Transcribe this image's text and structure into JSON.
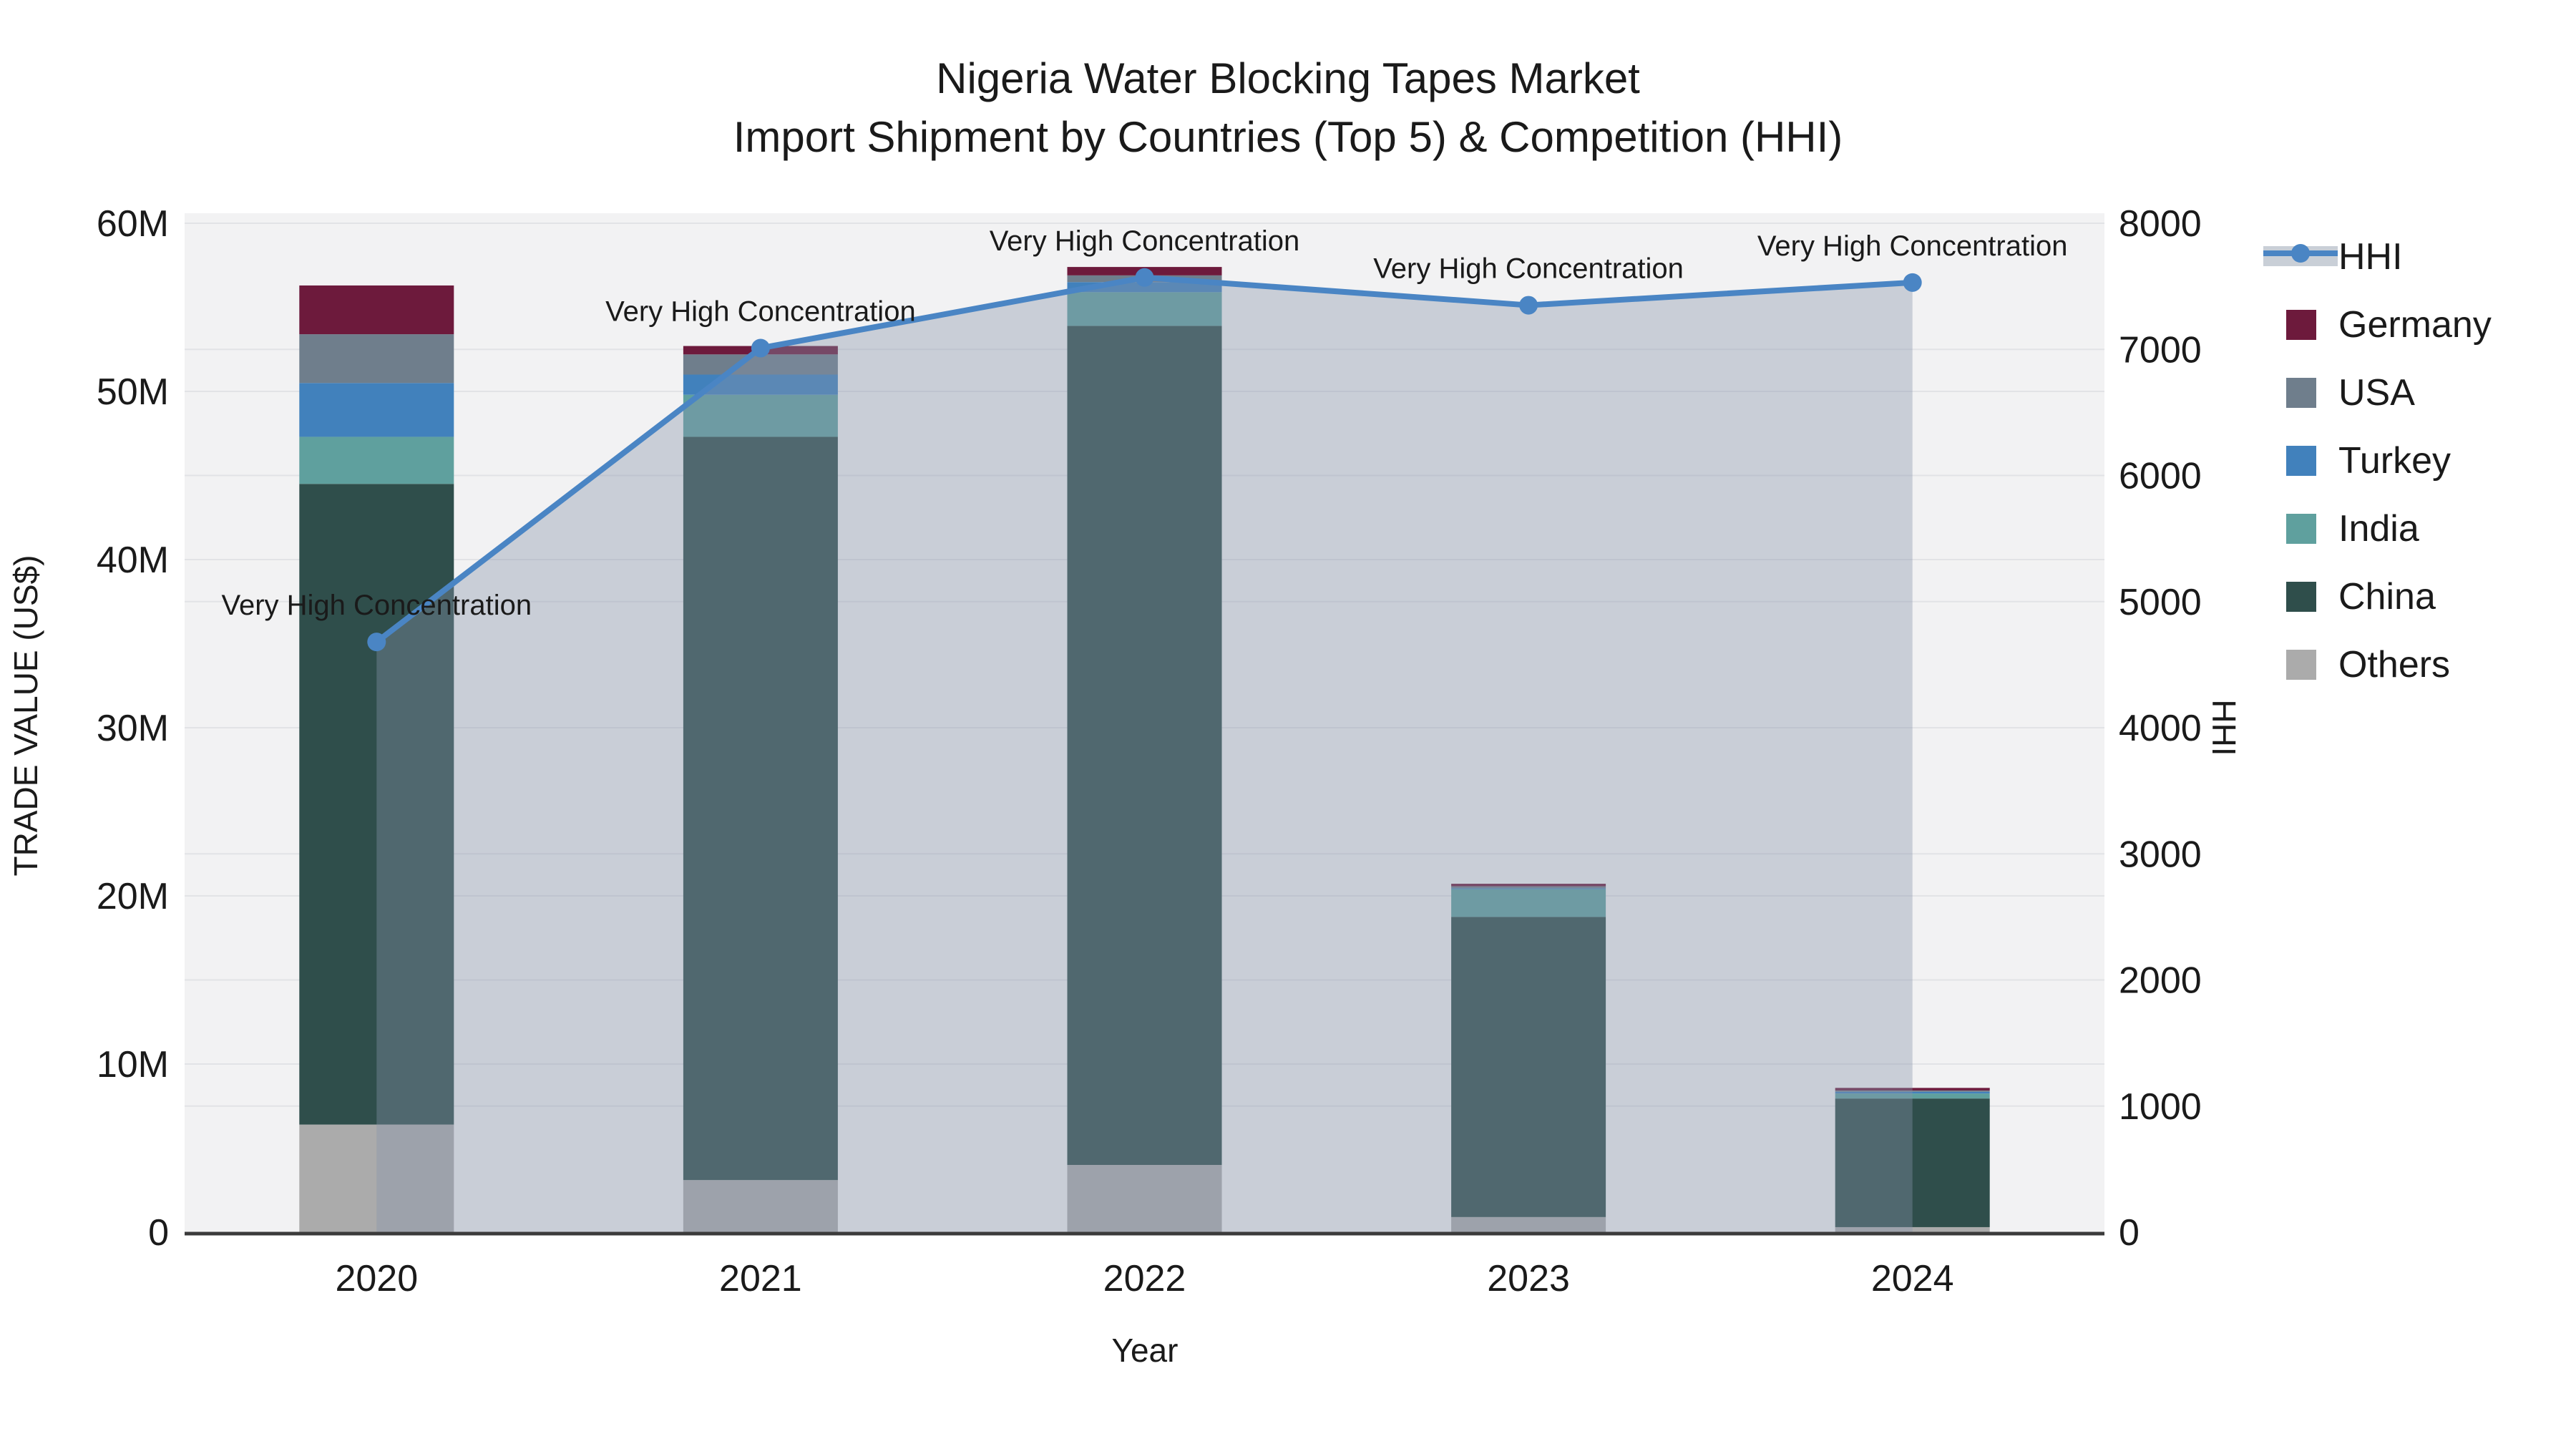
{
  "title": {
    "line1": "Nigeria Water Blocking Tapes Market",
    "line2": "Import Shipment by Countries (Top 5) & Competition (HHI)"
  },
  "colors": {
    "hhi_line": "#4a85c4",
    "hhi_area": "rgba(133,148,170,0.38)",
    "legend_area_sample": "#c9cfd7",
    "germany": "#6d1a3c",
    "usa": "#6f7e8c",
    "turkey": "#4181bc",
    "india": "#5fa09e",
    "china": "#2f4e4b",
    "others": "#ababab",
    "plot_bg": "#f2f2f3",
    "grid": "#e2e3e6",
    "axis_line": "#3b3b3b",
    "text": "#1a1a1a"
  },
  "legend": {
    "items": [
      {
        "label": "HHI",
        "type": "line",
        "color": "#4a85c4"
      },
      {
        "label": "Germany",
        "type": "swatch",
        "color": "#6d1a3c"
      },
      {
        "label": "USA",
        "type": "swatch",
        "color": "#6f7e8c"
      },
      {
        "label": "Turkey",
        "type": "swatch",
        "color": "#4181bc"
      },
      {
        "label": "India",
        "type": "swatch",
        "color": "#5fa09e"
      },
      {
        "label": "China",
        "type": "swatch",
        "color": "#2f4e4b"
      },
      {
        "label": "Others",
        "type": "swatch",
        "color": "#ababab"
      }
    ]
  },
  "chart_data": {
    "type": "bar",
    "subtype": "stacked-bars-with-line-overlay",
    "title": "Nigeria Water Blocking Tapes Market — Import Shipment by Countries (Top 5) & Competition (HHI)",
    "categories": [
      "2020",
      "2021",
      "2022",
      "2023",
      "2024"
    ],
    "unit": "US$ millions",
    "series": [
      {
        "name": "Germany",
        "color": "#6d1a3c",
        "values": [
          2.9,
          0.5,
          0.5,
          0.15,
          0.15
        ]
      },
      {
        "name": "USA",
        "color": "#6f7e8c",
        "values": [
          2.9,
          1.2,
          0.4,
          0.12,
          0.08
        ]
      },
      {
        "name": "Turkey",
        "color": "#4181bc",
        "values": [
          3.2,
          1.2,
          0.6,
          0.05,
          0.1
        ]
      },
      {
        "name": "India",
        "color": "#5fa09e",
        "values": [
          2.8,
          2.5,
          2.0,
          1.65,
          0.3
        ]
      },
      {
        "name": "China",
        "color": "#2f4e4b",
        "values": [
          38.1,
          44.2,
          49.9,
          17.85,
          7.65
        ]
      },
      {
        "name": "Others",
        "color": "#ababab",
        "values": [
          6.4,
          3.1,
          4.0,
          0.9,
          0.3
        ]
      }
    ],
    "stack_bottom_to_top": [
      "Others",
      "China",
      "India",
      "Turkey",
      "USA",
      "Germany"
    ],
    "totals_by_year": [
      56.3,
      52.7,
      57.4,
      20.72,
      8.58
    ],
    "line_series": {
      "name": "HHI",
      "axis": "right",
      "color": "#4a85c4",
      "values": [
        4680,
        7010,
        7570,
        7350,
        7530
      ]
    },
    "annotations": [
      "Very High Concentration",
      "Very High Concentration",
      "Very High Concentration",
      "Very High Concentration",
      "Very High Concentration"
    ],
    "y_left": {
      "label": "TRADE VALUE (US$)",
      "range": [
        0,
        60
      ],
      "tick_step": 10,
      "tick_labels": [
        "0",
        "10M",
        "20M",
        "30M",
        "40M",
        "50M",
        "60M"
      ]
    },
    "y_right": {
      "label": "HHI",
      "range": [
        0,
        8000
      ],
      "tick_step": 1000,
      "tick_labels": [
        "0",
        "1000",
        "2000",
        "3000",
        "4000",
        "5000",
        "6000",
        "7000",
        "8000"
      ]
    },
    "x_label": "Year",
    "grid": true,
    "legend_position": "right"
  }
}
